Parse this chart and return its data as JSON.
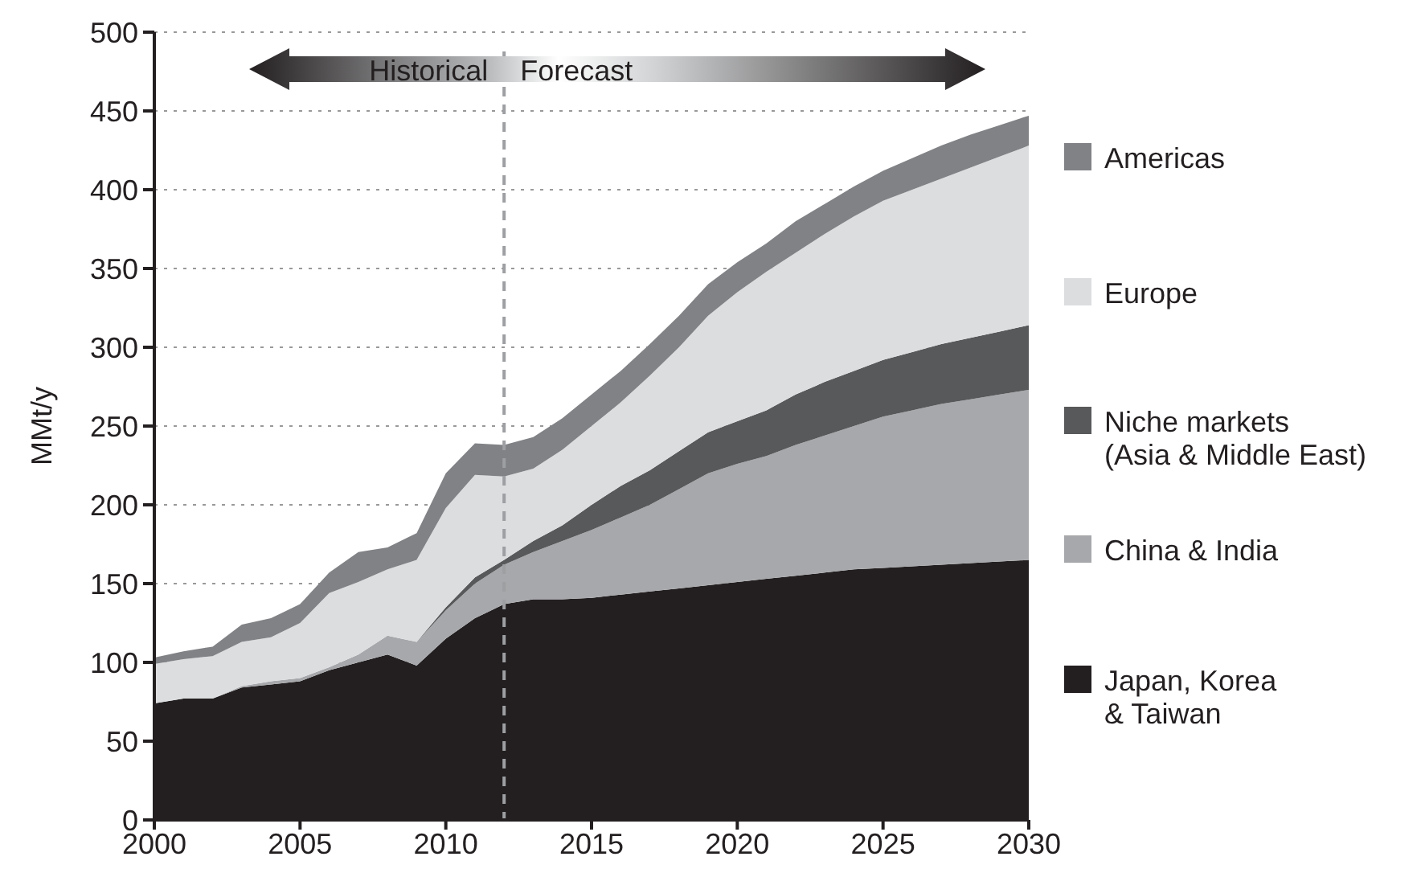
{
  "chart_data": {
    "type": "area",
    "stacked": true,
    "ylabel": "MMt/y",
    "x": [
      2000,
      2001,
      2002,
      2003,
      2004,
      2005,
      2006,
      2007,
      2008,
      2009,
      2010,
      2011,
      2012,
      2013,
      2014,
      2015,
      2016,
      2017,
      2018,
      2019,
      2020,
      2021,
      2022,
      2023,
      2024,
      2025,
      2026,
      2027,
      2028,
      2029,
      2030
    ],
    "xlim": [
      2000,
      2030
    ],
    "xticks": [
      2000,
      2005,
      2010,
      2015,
      2020,
      2025,
      2030
    ],
    "ylim": [
      0,
      500
    ],
    "yticks": [
      0,
      50,
      100,
      150,
      200,
      250,
      300,
      350,
      400,
      450,
      500
    ],
    "grid": "y",
    "legend": "right",
    "series": [
      {
        "name": "Japan, Korea\n& Taiwan",
        "color": "#231f20",
        "values": [
          74,
          77,
          77,
          84,
          86,
          88,
          95,
          100,
          105,
          98,
          115,
          128,
          137,
          140,
          140,
          141,
          143,
          145,
          147,
          149,
          151,
          153,
          155,
          157,
          159,
          160,
          161,
          162,
          163,
          164,
          165
        ]
      },
      {
        "name": "China & India",
        "color": "#a7a8ab",
        "values": [
          0,
          0,
          0,
          1,
          2,
          2,
          2,
          5,
          12,
          15,
          18,
          22,
          25,
          30,
          37,
          43,
          49,
          55,
          63,
          71,
          75,
          78,
          83,
          87,
          91,
          96,
          99,
          102,
          104,
          106,
          108
        ]
      },
      {
        "name": "Niche markets\n(Asia & Middle East)",
        "color": "#58595b",
        "values": [
          0,
          0,
          0,
          0,
          0,
          0,
          0,
          0,
          0,
          0,
          2,
          4,
          3,
          7,
          10,
          16,
          20,
          22,
          24,
          26,
          27,
          29,
          32,
          34,
          35,
          36,
          37,
          38,
          39,
          40,
          41
        ]
      },
      {
        "name": "Europe",
        "color": "#dcdddf",
        "values": [
          25,
          25,
          27,
          28,
          28,
          35,
          47,
          46,
          42,
          52,
          63,
          65,
          53,
          46,
          48,
          50,
          53,
          60,
          66,
          74,
          82,
          88,
          90,
          94,
          98,
          101,
          103,
          105,
          108,
          111,
          114
        ]
      },
      {
        "name": "Americas",
        "color": "#808285",
        "values": [
          4,
          5,
          6,
          11,
          12,
          12,
          13,
          19,
          14,
          17,
          22,
          20,
          20,
          20,
          20,
          20,
          20,
          20,
          20,
          20,
          19,
          18,
          20,
          19,
          19,
          19,
          20,
          21,
          21,
          20,
          19
        ]
      }
    ],
    "ref_lines": [
      {
        "axis": "x",
        "value": 2012,
        "line_style": "dashed",
        "color": "#9d9fa2"
      }
    ],
    "annotations": [
      "Historical",
      "Forecast"
    ]
  }
}
